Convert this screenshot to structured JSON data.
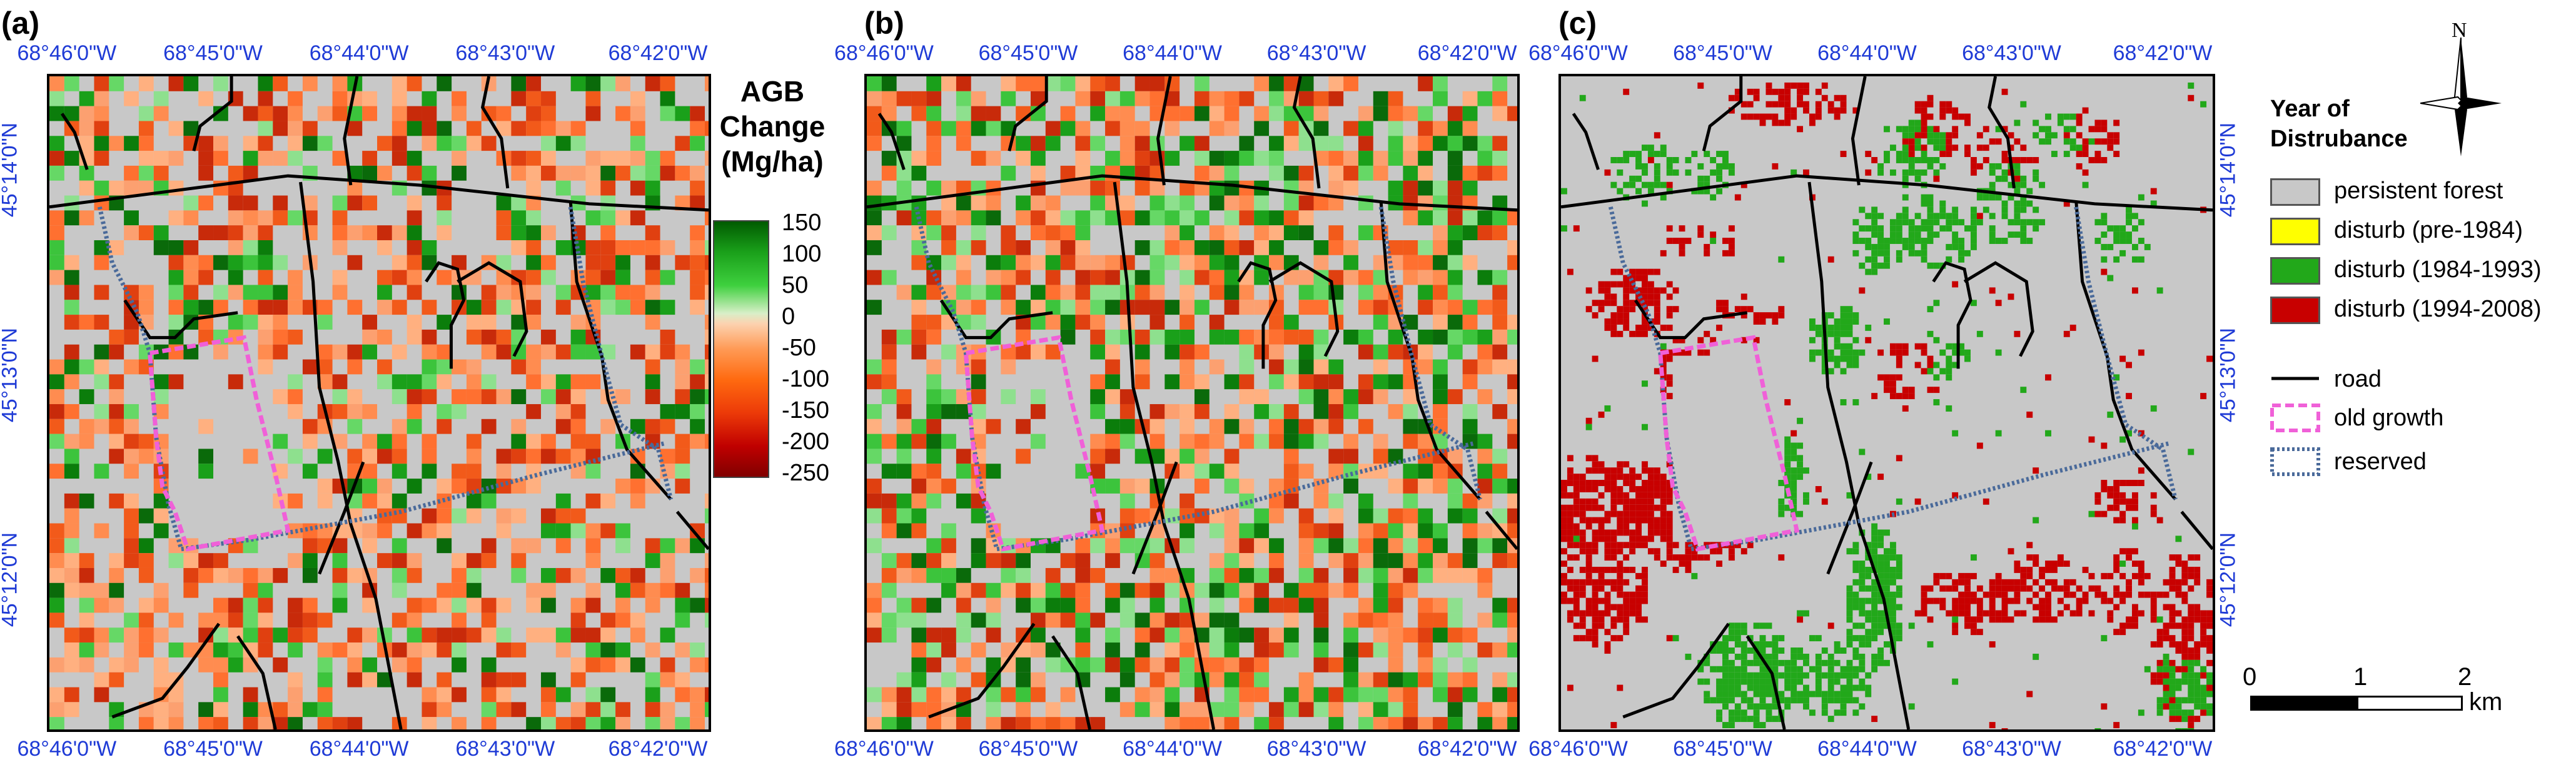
{
  "panels": [
    {
      "label": "(a)"
    },
    {
      "label": "(b)"
    },
    {
      "label": "(c)"
    }
  ],
  "top_lon_labels": [
    "68°46'0\"W",
    "68°45'0\"W",
    "68°44'0\"W",
    "68°43'0\"W",
    "68°42'0\"W"
  ],
  "bottom_lon_labels": [
    "68°46'0\"W",
    "68°45'0\"W",
    "68°44'0\"W",
    "68°43'0\"W",
    "68°42'0\"W"
  ],
  "lat_labels": [
    "45°14'0\"N",
    "45°13'0\"N",
    "45°12'0\"N"
  ],
  "agb_legend": {
    "title_lines": [
      "AGB",
      "Change",
      "(Mg/ha)"
    ],
    "ticks": [
      "150",
      "100",
      "50",
      "0",
      "-50",
      "-100",
      "-150",
      "-200",
      "-250"
    ]
  },
  "disturbance_legend": {
    "title_lines": [
      "Year of",
      "Distrubance"
    ],
    "items": [
      {
        "label": "persistent forest",
        "color": "#c8c8c8"
      },
      {
        "label": "disturb (pre-1984)",
        "color": "#ffff00"
      },
      {
        "label": "disturb (1984-1993)",
        "color": "#22a81a"
      },
      {
        "label": "disturb (1994-2008)",
        "color": "#c80000"
      }
    ],
    "line_items": [
      {
        "label": "road",
        "color": "#000000",
        "style": "solid"
      },
      {
        "label": "old growth",
        "color": "#f060d8",
        "style": "dashed"
      },
      {
        "label": "reserved",
        "color": "#4a6a9a",
        "style": "dotted"
      }
    ]
  },
  "north_arrow": {
    "label": "N"
  },
  "scale_bar": {
    "labels": [
      "0",
      "1",
      "2"
    ],
    "unit": "km"
  },
  "colors": {
    "background_forest": "#c8c8c8",
    "coord_text": "#1f3bd6",
    "road": "#000000",
    "old_growth": "#f060d8",
    "reserved": "#4a6a9a"
  }
}
